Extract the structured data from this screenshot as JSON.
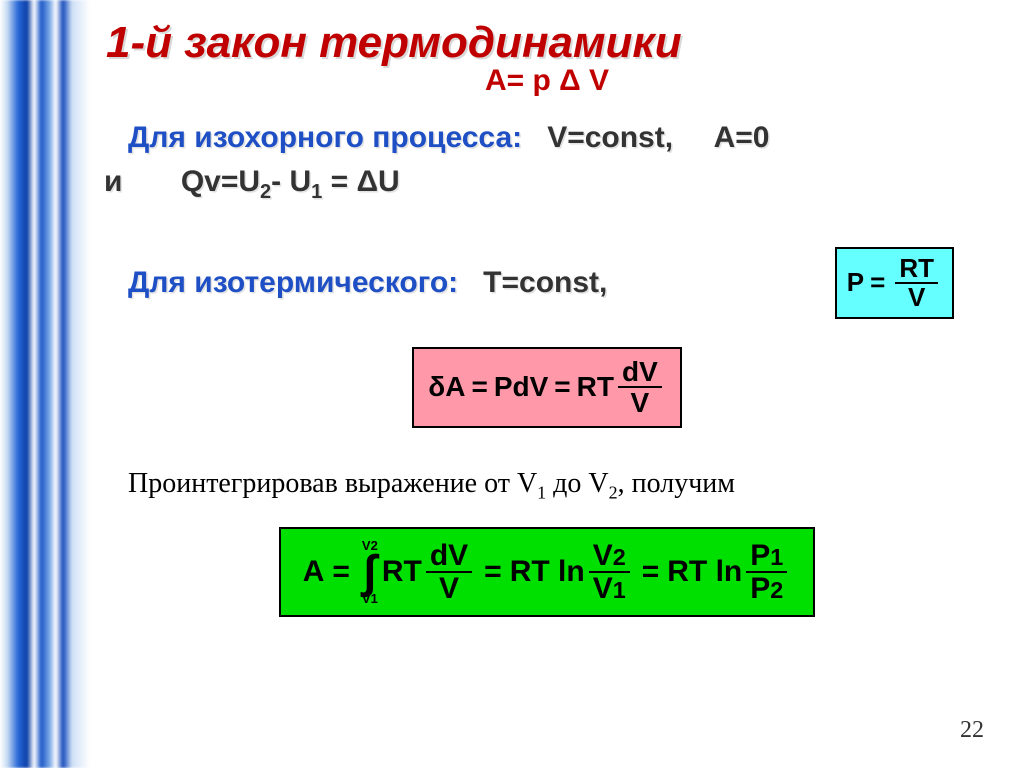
{
  "title": "1-й закон термодинамики",
  "top_equation": "A= p Δ V",
  "isochoric": {
    "label": "Для изохорного процесса",
    "cond1": "V=const,",
    "cond2": "A=0",
    "line2_prefix": "и",
    "line2_eq_pre": "Qv=U",
    "line2_sub1": "2",
    "line2_mid": "- U",
    "line2_sub2": "1",
    "line2_post": " = ΔU"
  },
  "isothermal": {
    "label": "Для изотермического:",
    "cond": "T=const,"
  },
  "cyan_formula": {
    "lhs": "P",
    "eq": "=",
    "num": "RT",
    "den": "V"
  },
  "pink_formula": {
    "lhs": "δA",
    "eq1": "=",
    "mid1": "PdV",
    "eq2": "=",
    "mid2": "RT",
    "num": "dV",
    "den": "V"
  },
  "integrate_text_pre": "Проинтегрировав выражение от V",
  "integrate_sub1": "1",
  "integrate_mid": " до V",
  "integrate_sub2": "2",
  "integrate_post": ", получим",
  "green_formula": {
    "A": "A",
    "eq": "=",
    "int_upper": "V2",
    "int_lower": "V1",
    "int_body": "RT",
    "frac1_num": "dV",
    "frac1_den": "V",
    "eq2": "=",
    "part2_pre": "RT ln",
    "frac2_num": "V",
    "frac2_num_sub": "2",
    "frac2_den": "V",
    "frac2_den_sub": "1",
    "eq3": "=",
    "part3_pre": "RT ln",
    "frac3_num": "P",
    "frac3_num_sub": "1",
    "frac3_den": "P",
    "frac3_den_sub": "2"
  },
  "page_number": "22",
  "colors": {
    "title_color": "#c00000",
    "blue_text": "#1f4fc5",
    "body_text": "#333333",
    "cyan_bg": "#66ffff",
    "pink_bg": "#ff99aa",
    "green_bg": "#00e000",
    "box_border": "#000000",
    "shadow": "#d9d9d9"
  }
}
